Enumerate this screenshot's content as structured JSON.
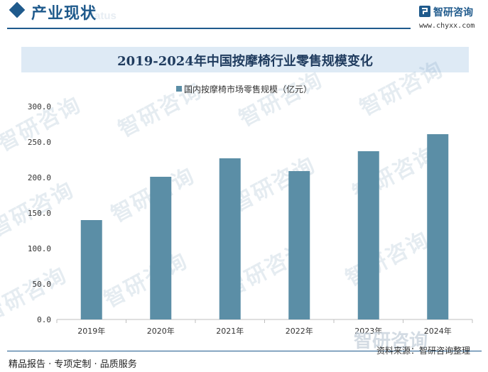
{
  "header": {
    "section_title": "产业现状",
    "section_subtitle": "Status",
    "brand_name": "智研咨询",
    "brand_url": "www.chyxx.com"
  },
  "watermark": {
    "text": "智研咨询"
  },
  "chart_data": {
    "type": "bar",
    "title": "2019-2024年中国按摩椅行业零售规模变化",
    "categories": [
      "2019年",
      "2020年",
      "2021年",
      "2022年",
      "2023年",
      "2024年"
    ],
    "series": [
      {
        "name": "国内按摩椅市场零售规模（亿元）",
        "values": [
          140,
          201,
          227,
          209,
          237,
          261
        ],
        "color": "#5b8ea6"
      }
    ],
    "y_ticks": [
      "300.0",
      "250.0",
      "200.0",
      "150.0",
      "100.0",
      "50.0",
      "0.0"
    ],
    "ylim": [
      0,
      300
    ],
    "grid": false,
    "legend_position": "top-center"
  },
  "footer": {
    "left_text": "精品报告 · 专项定制 · 品质服务",
    "source_text": "资料来源：智研咨询整理",
    "watermark_text": "智研咨询"
  }
}
